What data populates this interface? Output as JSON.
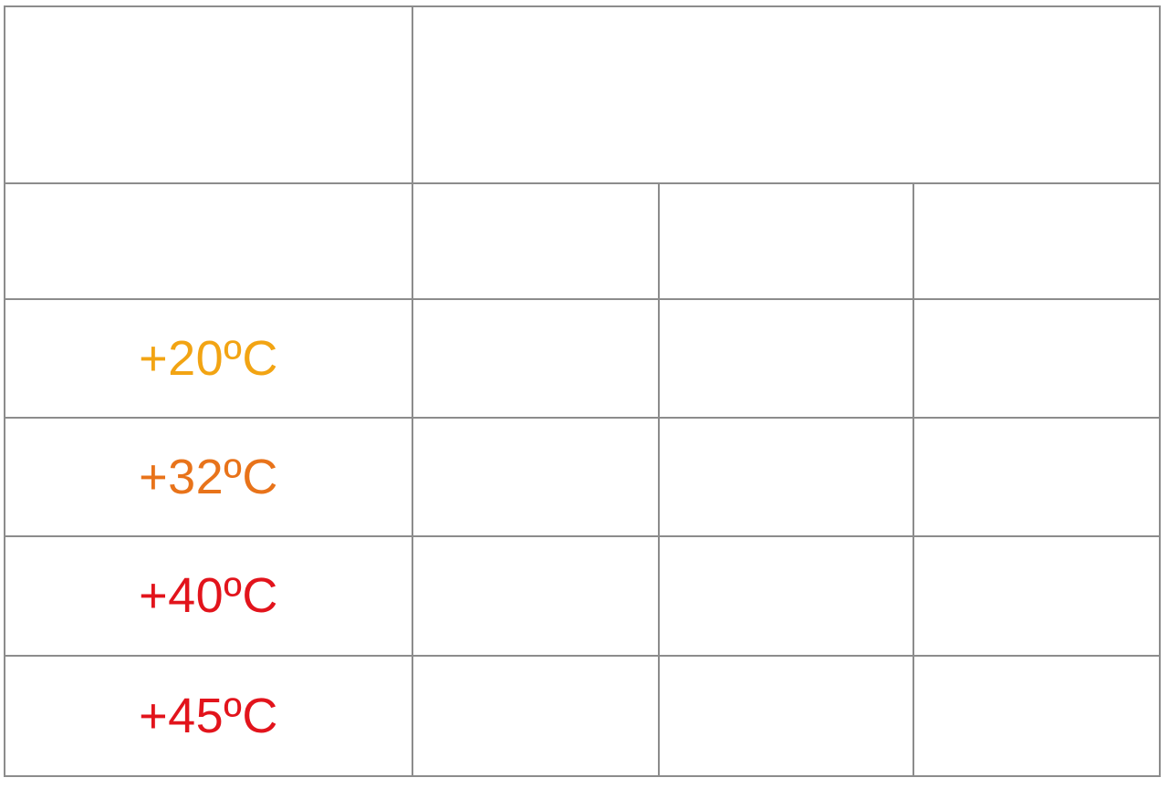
{
  "table": {
    "header_row": {
      "corner_text": "",
      "group_title": ""
    },
    "subheader_row": {
      "label_text": "",
      "columns": [
        "",
        "",
        ""
      ]
    },
    "rows": [
      {
        "temperature": "+20ºC",
        "color": "#f2a413",
        "cells": [
          "",
          "",
          ""
        ]
      },
      {
        "temperature": "+32ºC",
        "color": "#e8731a",
        "cells": [
          "",
          "",
          ""
        ]
      },
      {
        "temperature": "+40ºC",
        "color": "#e2141c",
        "cells": [
          "",
          "",
          ""
        ]
      },
      {
        "temperature": "+45ºC",
        "color": "#e2141c",
        "cells": [
          "",
          "",
          ""
        ]
      }
    ]
  }
}
